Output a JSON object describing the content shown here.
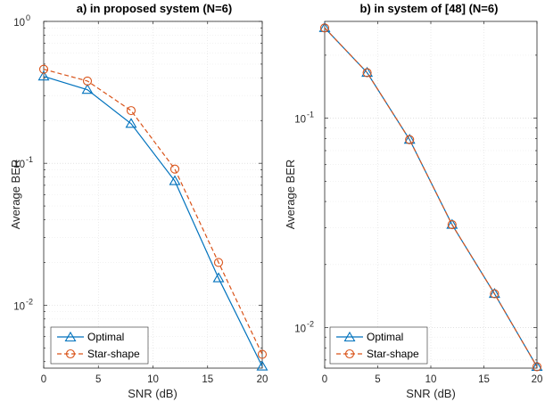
{
  "chart_data": [
    {
      "type": "line",
      "title": "a) in proposed system (N=6)",
      "xlabel": "SNR (dB)",
      "ylabel": "Average BER",
      "x": [
        0,
        4,
        8,
        12,
        16,
        20
      ],
      "xlim": [
        0,
        20
      ],
      "xticks": [
        "0",
        "5",
        "10",
        "15",
        "20"
      ],
      "ylim": [
        0.0036,
        1
      ],
      "yscale": "log",
      "yticks": [
        {
          "base": "10",
          "exp": "0"
        },
        {
          "base": "10",
          "exp": "-1"
        },
        {
          "base": "10",
          "exp": "-2"
        }
      ],
      "grid": true,
      "legend_position": "bottom-left",
      "series": [
        {
          "name": "Optimal",
          "marker": "triangle",
          "line": "solid",
          "color": "#0072BD",
          "values": [
            0.41,
            0.33,
            0.19,
            0.075,
            0.0155,
            0.0037
          ]
        },
        {
          "name": "Star-shape",
          "marker": "circle",
          "line": "dashed",
          "color": "#D95319",
          "values": [
            0.46,
            0.38,
            0.235,
            0.091,
            0.02,
            0.0045
          ]
        }
      ]
    },
    {
      "type": "line",
      "title": "b) in system of [48] (N=6)",
      "xlabel": "SNR (dB)",
      "ylabel": "Average BER",
      "x": [
        0,
        4,
        8,
        12,
        16,
        20
      ],
      "xlim": [
        0,
        20
      ],
      "xticks": [
        "0",
        "5",
        "10",
        "15",
        "20"
      ],
      "ylim": [
        0.0064,
        0.29
      ],
      "yscale": "log",
      "yticks": [
        {
          "base": "10",
          "exp": "-1"
        },
        {
          "base": "10",
          "exp": "-2"
        }
      ],
      "grid": true,
      "legend_position": "bottom-left",
      "series": [
        {
          "name": "Optimal",
          "marker": "triangle",
          "line": "solid",
          "color": "#0072BD",
          "values": [
            0.27,
            0.165,
            0.079,
            0.031,
            0.0145,
            0.0065
          ]
        },
        {
          "name": "Star-shape",
          "marker": "circle",
          "line": "dashed",
          "color": "#D95319",
          "values": [
            0.27,
            0.165,
            0.079,
            0.031,
            0.0145,
            0.0065
          ]
        }
      ]
    }
  ]
}
